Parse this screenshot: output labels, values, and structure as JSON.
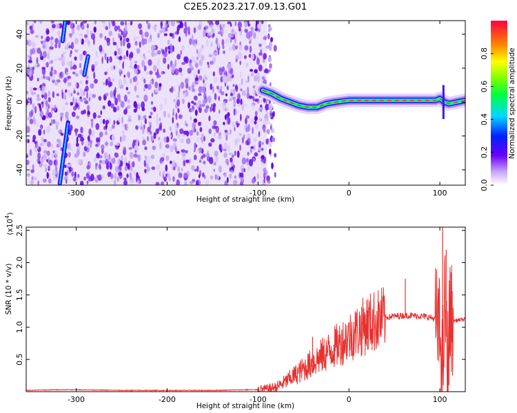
{
  "title": "C2E5.2023.217.09.13.G01",
  "chart_data": [
    {
      "type": "heatmap",
      "xlabel": "Height of straight line (km)",
      "ylabel": "Frequency (Hz)",
      "xlim": [
        -355,
        128
      ],
      "ylim": [
        -49,
        48
      ],
      "xticks": [
        -300,
        -200,
        -100,
        0,
        100
      ],
      "xtick_labels": [
        "-300",
        "-200",
        "-100",
        "0",
        "100"
      ],
      "yticks": [
        -40,
        -20,
        0,
        20,
        40
      ],
      "ytick_labels": [
        "-40",
        "-20",
        "0",
        "20",
        "40"
      ],
      "noise_region_x": [
        -355,
        -90
      ],
      "streaks": [
        {
          "x": [
            -318,
            -309
          ],
          "y": [
            -48,
            -12
          ]
        },
        {
          "x": [
            -315,
            -312
          ],
          "y": [
            36,
            48
          ]
        },
        {
          "x": [
            -291,
            -287
          ],
          "y": [
            16,
            27
          ]
        }
      ],
      "signal_track": {
        "x": [
          -95,
          -85,
          -75,
          -65,
          -55,
          -45,
          -35,
          -25,
          -15,
          0,
          20,
          40,
          60,
          80,
          95,
          100,
          105,
          110,
          128
        ],
        "y": [
          7,
          5,
          2,
          0,
          -2,
          -3,
          -3,
          -1,
          0,
          1,
          1,
          1,
          1,
          1,
          1,
          2,
          0,
          -1,
          1
        ]
      },
      "colorbar": {
        "label": "Normalized spectral amplitude",
        "range": [
          0,
          1
        ],
        "ticks": [
          0.0,
          0.2,
          0.4,
          0.6,
          0.8
        ],
        "tick_labels": [
          "0.0",
          "0.2",
          "0.4",
          "0.6",
          "0.8"
        ]
      }
    },
    {
      "type": "line",
      "xlabel": "Height of straight line (km)",
      "ylabel": "SNR (10 * v/v)",
      "y_multiplier": "(x10",
      "y_multiplier_exp": "4",
      "y_multiplier_close": ")",
      "xlim": [
        -355,
        128
      ],
      "ylim": [
        0,
        2.55
      ],
      "xticks": [
        -300,
        -200,
        -100,
        0,
        100
      ],
      "xtick_labels": [
        "-300",
        "-200",
        "-100",
        "0",
        "100"
      ],
      "yticks": [
        0.5,
        1.0,
        1.5,
        2.0,
        2.5
      ],
      "ytick_labels": [
        "0.5",
        "1.0",
        "1.5",
        "2.0",
        "2.5"
      ],
      "line_color": "#e8312f",
      "series": [
        {
          "x": [
            -355,
            -320,
            -300,
            -250,
            -200,
            -150,
            -110,
            -100,
            -90,
            -80,
            -70,
            -60,
            -50,
            -40,
            -30,
            -20,
            -10,
            0,
            10,
            20,
            30,
            40,
            50,
            60,
            70,
            80,
            90,
            95,
            100,
            103,
            106,
            108,
            110,
            112,
            115,
            128
          ],
          "y": [
            0.02,
            0.03,
            0.03,
            0.02,
            0.02,
            0.02,
            0.03,
            0.03,
            0.04,
            0.07,
            0.15,
            0.25,
            0.35,
            0.45,
            0.55,
            0.65,
            0.75,
            0.85,
            0.95,
            1.05,
            1.1,
            1.15,
            1.17,
            1.18,
            1.18,
            1.17,
            1.15,
            1.12,
            0.9,
            0.3,
            1.5,
            0.2,
            1.0,
            1.15,
            1.1,
            1.12
          ]
        }
      ],
      "spikes": [
        {
          "x": 103,
          "y": 2.55
        },
        {
          "x": 107,
          "y": 2.2
        },
        {
          "x": 110,
          "y": 0.1
        },
        {
          "x": 62,
          "y": 1.75
        },
        {
          "x": -40,
          "y": 0.85
        }
      ]
    }
  ]
}
